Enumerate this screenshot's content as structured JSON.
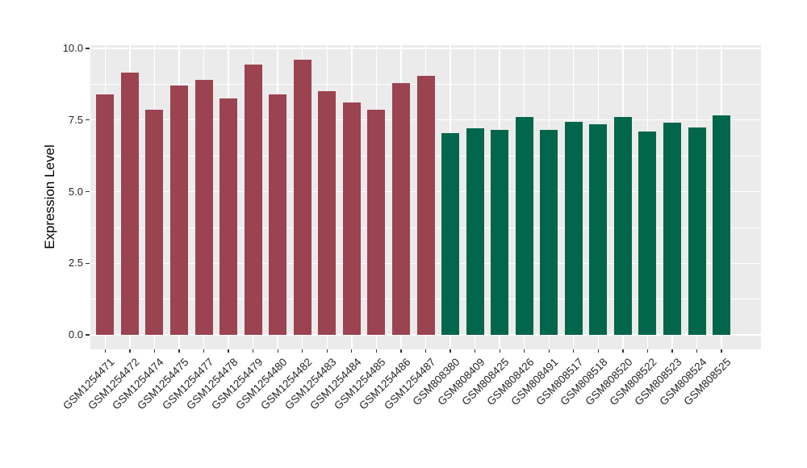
{
  "chart_data": {
    "type": "bar",
    "title": "",
    "xlabel": "",
    "ylabel": "Expression Level",
    "ylim": [
      0,
      10.08
    ],
    "grid": "major and minor horizontal white gridlines, vertical white gridline per category",
    "legend_position": "none",
    "panel_background": "#EBEBEB",
    "gridline_color": "#FFFFFF",
    "tick_color": "#333333",
    "axis_text_color": "#262626",
    "yticks": [
      {
        "value": 0,
        "label": "0.0"
      },
      {
        "value": 2.5,
        "label": "2.5"
      },
      {
        "value": 5,
        "label": "5.0"
      },
      {
        "value": 7.5,
        "label": "7.5"
      },
      {
        "value": 10,
        "label": "10.0"
      }
    ],
    "minor_gridlines": [
      1.25,
      3.75,
      6.25,
      8.75
    ],
    "series": [
      {
        "group": "group-1",
        "color": "#9C4351",
        "bars": [
          {
            "label": "GSM1254471",
            "value": 8.4
          },
          {
            "label": "GSM1254472",
            "value": 9.15
          },
          {
            "label": "GSM1254474",
            "value": 7.85
          },
          {
            "label": "GSM1254475",
            "value": 8.7
          },
          {
            "label": "GSM1254477",
            "value": 8.9
          },
          {
            "label": "GSM1254478",
            "value": 8.25
          },
          {
            "label": "GSM1254479",
            "value": 9.45
          },
          {
            "label": "GSM1254480",
            "value": 8.4
          },
          {
            "label": "GSM1254482",
            "value": 9.6
          },
          {
            "label": "GSM1254483",
            "value": 8.5
          },
          {
            "label": "GSM1254484",
            "value": 8.1
          },
          {
            "label": "GSM1254485",
            "value": 7.85
          },
          {
            "label": "GSM1254486",
            "value": 8.8
          },
          {
            "label": "GSM1254487",
            "value": 9.05
          }
        ]
      },
      {
        "group": "group-2",
        "color": "#01664B",
        "bars": [
          {
            "label": "GSM808380",
            "value": 7.05
          },
          {
            "label": "GSM808409",
            "value": 7.2
          },
          {
            "label": "GSM808425",
            "value": 7.15
          },
          {
            "label": "GSM808426",
            "value": 7.6
          },
          {
            "label": "GSM808491",
            "value": 7.15
          },
          {
            "label": "GSM808517",
            "value": 7.45
          },
          {
            "label": "GSM808518",
            "value": 7.35
          },
          {
            "label": "GSM808520",
            "value": 7.6
          },
          {
            "label": "GSM808522",
            "value": 7.1
          },
          {
            "label": "GSM808523",
            "value": 7.4
          },
          {
            "label": "GSM808524",
            "value": 7.25
          },
          {
            "label": "GSM808525",
            "value": 7.65
          }
        ]
      }
    ]
  }
}
